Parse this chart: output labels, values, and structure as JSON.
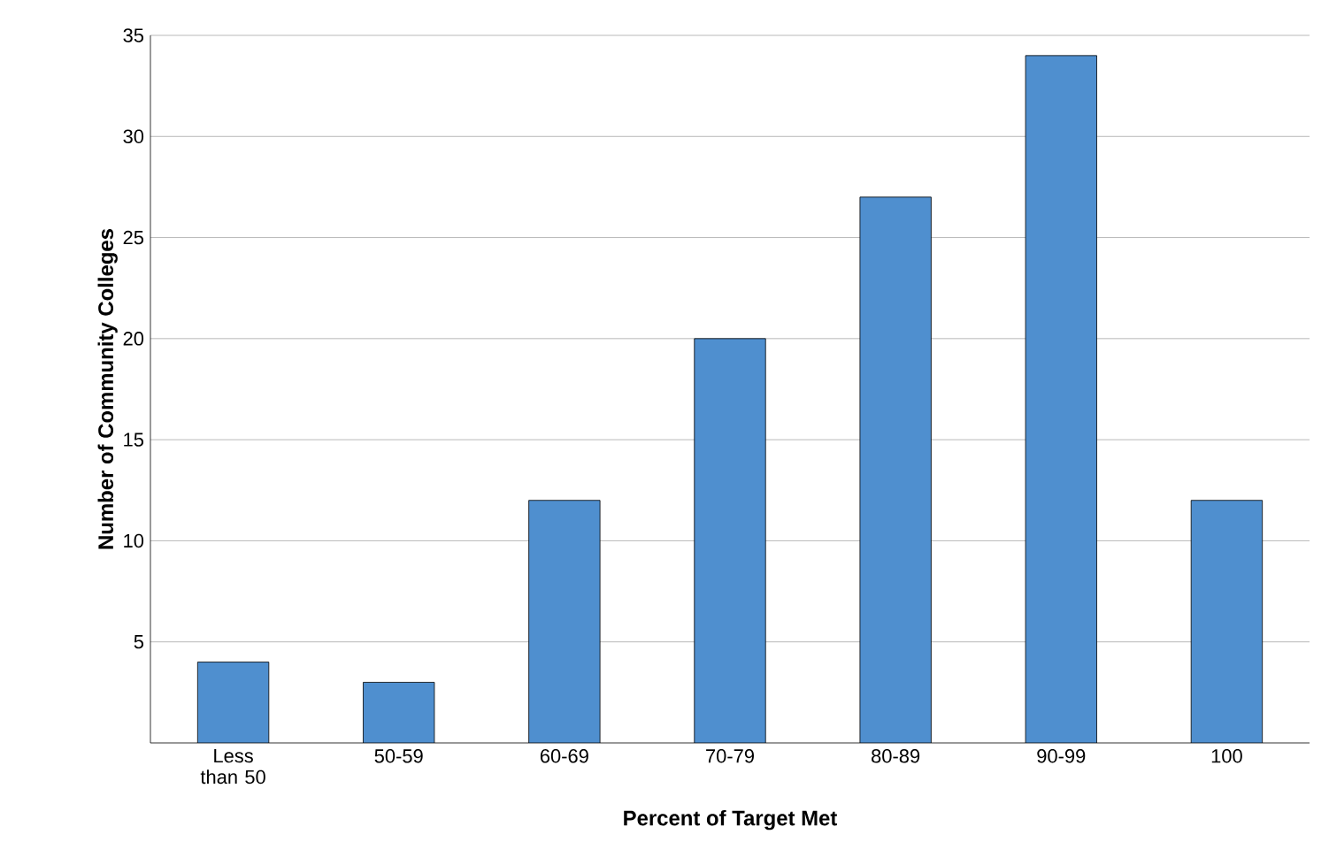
{
  "chart_data": {
    "type": "bar",
    "xlabel": "Percent of Target Met",
    "ylabel": "Number of Community Colleges",
    "categories": [
      "Less than 50",
      "50-59",
      "60-69",
      "70-79",
      "80-89",
      "90-99",
      "100"
    ],
    "values": [
      4,
      3,
      12,
      20,
      27,
      34,
      12
    ],
    "color": "#4f8fcf",
    "ylim": [
      0,
      35
    ],
    "yticks": [
      5,
      10,
      15,
      20,
      25,
      30,
      35
    ],
    "grid": "y"
  }
}
